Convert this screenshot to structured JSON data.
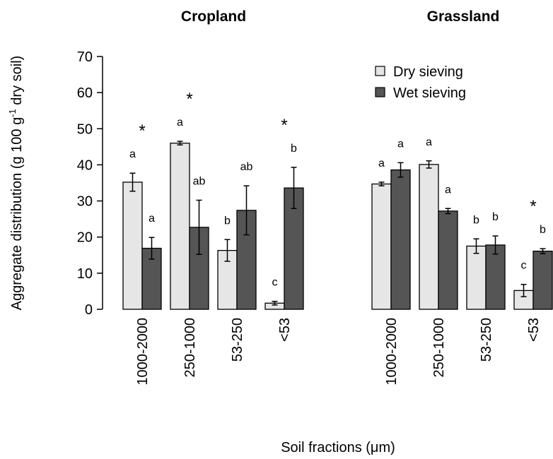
{
  "y_label": [
    "Aggregate distribution (g 100 g",
    "-1",
    " dry soil)"
  ],
  "x_label": "Soil fractions (μm)",
  "chart_data": [
    {
      "type": "bar",
      "title": "Cropland",
      "categories": [
        "1000-2000",
        "250-1000",
        "53-250",
        "<53"
      ],
      "ylim": [
        0,
        70
      ],
      "yticks": [
        0,
        10,
        20,
        30,
        40,
        50,
        60,
        70
      ],
      "significance": [
        "*",
        "*",
        null,
        "*"
      ],
      "series": [
        {
          "color": "#e6e6e6",
          "values": [
            35.2,
            46.0,
            16.3,
            1.7
          ],
          "errors": [
            2.5,
            0.5,
            3.0,
            0.5
          ],
          "letters": [
            "a",
            "a",
            "b",
            "c"
          ]
        },
        {
          "color": "#555555",
          "values": [
            16.9,
            22.7,
            27.4,
            33.6
          ],
          "errors": [
            3.0,
            7.5,
            6.8,
            5.7
          ],
          "letters": [
            "a",
            "ab",
            "ab",
            "b"
          ]
        }
      ]
    },
    {
      "type": "bar",
      "title": "Grassland",
      "categories": [
        "1000-2000",
        "250-1000",
        "53-250",
        "<53"
      ],
      "ylim": [
        0,
        70
      ],
      "significance": [
        null,
        null,
        null,
        "*"
      ],
      "series": [
        {
          "name": "Dry sieving",
          "color": "#e6e6e6",
          "values": [
            34.7,
            40.1,
            17.5,
            5.2
          ],
          "errors": [
            0.5,
            1.0,
            2.0,
            1.7
          ],
          "letters": [
            "a",
            "a",
            "b",
            "c"
          ]
        },
        {
          "name": "Wet sieving",
          "color": "#555555",
          "values": [
            38.6,
            27.2,
            17.8,
            16.1
          ],
          "errors": [
            2.0,
            0.7,
            2.5,
            0.7
          ],
          "letters": [
            "a",
            "a",
            "b",
            "b"
          ]
        }
      ]
    }
  ]
}
